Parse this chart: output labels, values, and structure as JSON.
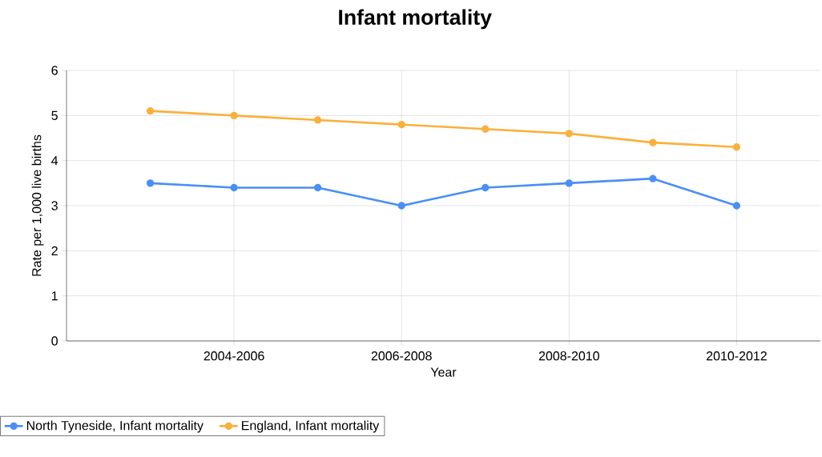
{
  "chart_data": {
    "type": "line",
    "title": "Infant mortality",
    "xlabel": "Year",
    "ylabel": "Rate per 1,000 live births",
    "categories": [
      null,
      "2004-2006",
      null,
      "2006-2008",
      null,
      "2008-2010",
      null,
      "2010-2012"
    ],
    "series": [
      {
        "name": "North Tyneside, Infant mortality",
        "color": "#4a8ff5",
        "values": [
          3.5,
          3.4,
          3.4,
          3.0,
          3.4,
          3.5,
          3.6,
          3.0
        ]
      },
      {
        "name": "England, Infant mortality",
        "color": "#fbb03b",
        "values": [
          5.1,
          5.0,
          4.9,
          4.8,
          4.7,
          4.6,
          4.4,
          4.3
        ]
      }
    ],
    "ylim": [
      0,
      6
    ],
    "yticks": [
      0,
      1,
      2,
      3,
      4,
      5,
      6
    ],
    "grid": true,
    "legend": "bottom left",
    "marker": "circle",
    "line_style": "solid"
  }
}
